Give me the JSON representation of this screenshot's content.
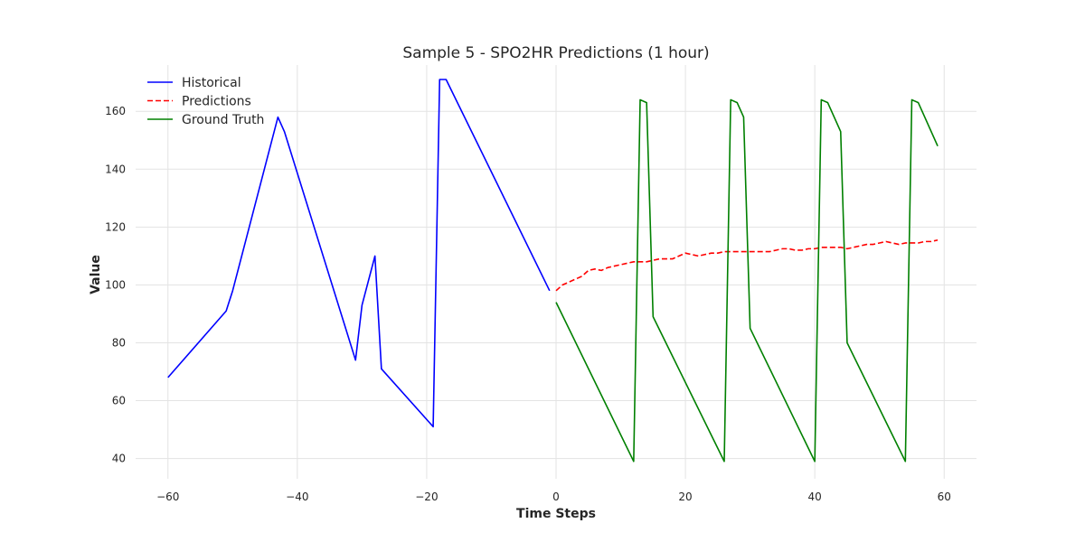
{
  "chart_data": {
    "type": "line",
    "title": "Sample 5 - SPO2HR Predictions (1 hour)",
    "xlabel": "Time Steps",
    "ylabel": "Value",
    "xlim": [
      -65,
      65
    ],
    "ylim": [
      33,
      176
    ],
    "xticks": [
      -60,
      -40,
      -20,
      0,
      20,
      40,
      60
    ],
    "xtick_labels": [
      "−60",
      "−40",
      "−20",
      "0",
      "20",
      "40",
      "60"
    ],
    "yticks": [
      40,
      60,
      80,
      100,
      120,
      140,
      160
    ],
    "ytick_labels": [
      "40",
      "60",
      "80",
      "100",
      "120",
      "140",
      "160"
    ],
    "grid": true,
    "legend_position": "top-left",
    "series": [
      {
        "name": "Historical",
        "color": "#0000ff",
        "style": "solid",
        "x": [
          -60,
          -51,
          -50,
          -43,
          -42,
          -31,
          -30,
          -28,
          -27,
          -19,
          -18,
          -17,
          -1
        ],
        "y": [
          68,
          91,
          98,
          158,
          153,
          74,
          93,
          110,
          71,
          51,
          171,
          171,
          98
        ]
      },
      {
        "name": "Predictions",
        "color": "#ff0000",
        "style": "dashed",
        "x": [
          0,
          1,
          2,
          3,
          4,
          5,
          6,
          7,
          8,
          9,
          10,
          11,
          12,
          13,
          14,
          15,
          16,
          17,
          18,
          19,
          20,
          21,
          22,
          23,
          24,
          25,
          26,
          27,
          28,
          29,
          30,
          31,
          32,
          33,
          34,
          35,
          36,
          37,
          38,
          39,
          40,
          41,
          42,
          43,
          44,
          45,
          46,
          47,
          48,
          49,
          50,
          51,
          52,
          53,
          54,
          55,
          56,
          57,
          58,
          59
        ],
        "y": [
          98,
          100,
          101,
          102,
          103,
          105,
          105.5,
          105,
          106,
          106.5,
          107,
          107.5,
          108,
          108,
          108,
          108.5,
          109,
          109,
          109,
          110,
          111,
          110.5,
          110,
          110.5,
          111,
          111,
          111.5,
          111.5,
          111.5,
          111.5,
          111.5,
          111.5,
          111.5,
          111.5,
          112,
          112.5,
          112.5,
          112,
          112,
          112.5,
          112.5,
          113,
          113,
          113,
          113,
          112.5,
          113,
          113.5,
          114,
          114,
          114.5,
          115,
          114.5,
          114,
          114.5,
          114.5,
          114.5,
          115,
          115,
          115.5
        ]
      },
      {
        "name": "Ground Truth",
        "color": "#008000",
        "style": "solid",
        "x": [
          0,
          12,
          13,
          14,
          15,
          26,
          27,
          28,
          29,
          30,
          40,
          41,
          42,
          44,
          45,
          54,
          55,
          56,
          59
        ],
        "y": [
          94,
          39,
          164,
          163,
          89,
          39,
          164,
          163,
          158,
          85,
          39,
          164,
          163,
          153,
          80,
          39,
          164,
          163,
          148
        ]
      }
    ]
  }
}
